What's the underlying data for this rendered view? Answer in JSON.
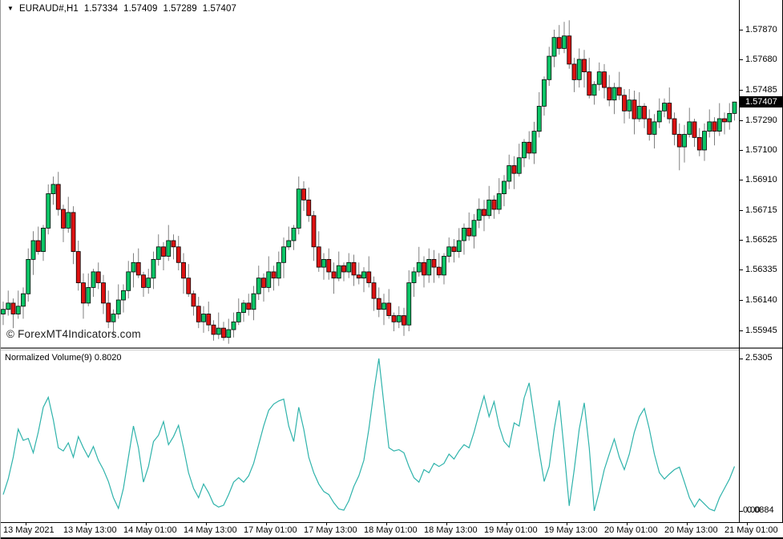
{
  "window": {
    "collapse_icon": "▼",
    "symbol": "EURAUD#,H1",
    "ohlc_open": "1.57334",
    "ohlc_high": "1.57409",
    "ohlc_low": "1.57289",
    "ohlc_close": "1.57407"
  },
  "watermark": "© ForexMT4Indicators.com",
  "indicator_panel": {
    "label": "Normalized Volume(9)",
    "current_value": "0.8020",
    "axis_max": "2.5305",
    "axis_min": "0.0884",
    "axis_min_overlay": "0.00"
  },
  "price_axis": {
    "labels": [
      "1.57870",
      "1.57680",
      "1.57485",
      "1.57290",
      "1.57100",
      "1.56910",
      "1.56715",
      "1.56525",
      "1.56335",
      "1.56140",
      "1.55945"
    ],
    "current_price": "1.57407"
  },
  "time_axis": {
    "labels": [
      "13 May 2021",
      "13 May 13:00",
      "14 May 01:00",
      "14 May 13:00",
      "17 May 01:00",
      "17 May 13:00",
      "18 May 01:00",
      "18 May 13:00",
      "19 May 01:00",
      "19 May 13:00",
      "20 May 01:00",
      "20 May 13:00",
      "21 May 01:00"
    ]
  },
  "colors": {
    "background": "#ffffff",
    "bull": "#0bc566",
    "bear": "#de1212",
    "candle_outline": "#000000",
    "wick": "#808080",
    "indicator_line": "#2fb3ab",
    "badge_bg": "#000000",
    "badge_text": "#ffffff",
    "frame": "#000000",
    "text": "#000000"
  },
  "chart_data": [
    {
      "type": "candlestick",
      "title": "EURAUD# H1 candlestick price chart",
      "ylabel": "price",
      "ylim": [
        1.5584,
        1.5806
      ],
      "axis_refs": {
        "price_a": 1.5787,
        "y_a": 37,
        "price_b": 1.55945,
        "y_b": 412
      },
      "ohlc": [
        [
          1.5605,
          1.5613,
          1.5598,
          1.5608
        ],
        [
          1.5608,
          1.562,
          1.5604,
          1.5612
        ],
        [
          1.5612,
          1.5615,
          1.5596,
          1.5605
        ],
        [
          1.5605,
          1.562,
          1.5602,
          1.561
        ],
        [
          1.561,
          1.5622,
          1.5602,
          1.5618
        ],
        [
          1.5618,
          1.5647,
          1.5613,
          1.564
        ],
        [
          1.564,
          1.5658,
          1.563,
          1.5652
        ],
        [
          1.5652,
          1.5661,
          1.5643,
          1.5645
        ],
        [
          1.5645,
          1.5662,
          1.5639,
          1.566
        ],
        [
          1.566,
          1.5688,
          1.5656,
          1.5682
        ],
        [
          1.5682,
          1.5693,
          1.5675,
          1.5688
        ],
        [
          1.5688,
          1.5696,
          1.5668,
          1.5672
        ],
        [
          1.5672,
          1.5675,
          1.5651,
          1.566
        ],
        [
          1.566,
          1.568,
          1.5657,
          1.567
        ],
        [
          1.567,
          1.5674,
          1.5637,
          1.5645
        ],
        [
          1.5645,
          1.5652,
          1.562,
          1.5625
        ],
        [
          1.5625,
          1.5631,
          1.5602,
          1.5612
        ],
        [
          1.5612,
          1.5631,
          1.561,
          1.5622
        ],
        [
          1.5622,
          1.5634,
          1.5616,
          1.5632
        ],
        [
          1.5632,
          1.5638,
          1.5621,
          1.5625
        ],
        [
          1.5625,
          1.563,
          1.5605,
          1.5612
        ],
        [
          1.5612,
          1.562,
          1.5596,
          1.56
        ],
        [
          1.56,
          1.5608,
          1.5591,
          1.5605
        ],
        [
          1.5605,
          1.5624,
          1.5602,
          1.5614
        ],
        [
          1.5614,
          1.5624,
          1.5606,
          1.562
        ],
        [
          1.562,
          1.5639,
          1.5615,
          1.5632
        ],
        [
          1.5632,
          1.5644,
          1.5622,
          1.5638
        ],
        [
          1.5638,
          1.5647,
          1.5628,
          1.563
        ],
        [
          1.563,
          1.5632,
          1.5616,
          1.5622
        ],
        [
          1.5622,
          1.5634,
          1.5618,
          1.5628
        ],
        [
          1.5628,
          1.5645,
          1.5621,
          1.564
        ],
        [
          1.564,
          1.5656,
          1.5636,
          1.5648
        ],
        [
          1.5648,
          1.5651,
          1.5633,
          1.5642
        ],
        [
          1.5642,
          1.5662,
          1.5639,
          1.5652
        ],
        [
          1.5652,
          1.5656,
          1.564,
          1.5648
        ],
        [
          1.5648,
          1.5655,
          1.5633,
          1.5638
        ],
        [
          1.5638,
          1.5644,
          1.5618,
          1.5628
        ],
        [
          1.5628,
          1.5637,
          1.5616,
          1.5618
        ],
        [
          1.5618,
          1.562,
          1.5604,
          1.561
        ],
        [
          1.561,
          1.5616,
          1.5596,
          1.56
        ],
        [
          1.56,
          1.561,
          1.5593,
          1.5605
        ],
        [
          1.5605,
          1.5613,
          1.5594,
          1.5598
        ],
        [
          1.5598,
          1.5601,
          1.5588,
          1.5592
        ],
        [
          1.5592,
          1.5606,
          1.5589,
          1.5596
        ],
        [
          1.5596,
          1.56,
          1.5588,
          1.559
        ],
        [
          1.559,
          1.5602,
          1.5586,
          1.5595
        ],
        [
          1.5595,
          1.5606,
          1.559,
          1.56
        ],
        [
          1.56,
          1.5615,
          1.5598,
          1.5606
        ],
        [
          1.5606,
          1.5614,
          1.56,
          1.5612
        ],
        [
          1.5612,
          1.5618,
          1.5604,
          1.5608
        ],
        [
          1.5608,
          1.5623,
          1.5601,
          1.5618
        ],
        [
          1.5618,
          1.5636,
          1.5614,
          1.5628
        ],
        [
          1.5628,
          1.5631,
          1.5613,
          1.5622
        ],
        [
          1.5622,
          1.5642,
          1.5619,
          1.5632
        ],
        [
          1.5632,
          1.5636,
          1.562,
          1.5628
        ],
        [
          1.5628,
          1.5645,
          1.5623,
          1.5638
        ],
        [
          1.5638,
          1.5654,
          1.5628,
          1.5648
        ],
        [
          1.5648,
          1.5661,
          1.5646,
          1.5652
        ],
        [
          1.5652,
          1.5662,
          1.5646,
          1.566
        ],
        [
          1.566,
          1.5693,
          1.5656,
          1.5685
        ],
        [
          1.5685,
          1.569,
          1.5671,
          1.5678
        ],
        [
          1.5678,
          1.5686,
          1.5664,
          1.5668
        ],
        [
          1.5668,
          1.5671,
          1.5639,
          1.5648
        ],
        [
          1.5648,
          1.5658,
          1.5632,
          1.5635
        ],
        [
          1.5635,
          1.5644,
          1.5627,
          1.564
        ],
        [
          1.564,
          1.5647,
          1.5627,
          1.5632
        ],
        [
          1.5632,
          1.5638,
          1.5618,
          1.5628
        ],
        [
          1.5628,
          1.5645,
          1.5626,
          1.5636
        ],
        [
          1.5636,
          1.5638,
          1.5626,
          1.5632
        ],
        [
          1.5632,
          1.5644,
          1.5628,
          1.5638
        ],
        [
          1.5638,
          1.5643,
          1.5623,
          1.563
        ],
        [
          1.563,
          1.5638,
          1.5624,
          1.5628
        ],
        [
          1.5628,
          1.5635,
          1.5619,
          1.5632
        ],
        [
          1.5632,
          1.5642,
          1.5622,
          1.5625
        ],
        [
          1.5625,
          1.5629,
          1.5607,
          1.5615
        ],
        [
          1.5615,
          1.5622,
          1.5603,
          1.5608
        ],
        [
          1.5608,
          1.5618,
          1.5598,
          1.5612
        ],
        [
          1.5612,
          1.5621,
          1.5602,
          1.5604
        ],
        [
          1.5604,
          1.5606,
          1.5594,
          1.56
        ],
        [
          1.56,
          1.561,
          1.5596,
          1.5604
        ],
        [
          1.5604,
          1.5609,
          1.5591,
          1.5598
        ],
        [
          1.5598,
          1.5633,
          1.5594,
          1.5625
        ],
        [
          1.5625,
          1.5635,
          1.5616,
          1.5632
        ],
        [
          1.5632,
          1.5648,
          1.5629,
          1.5638
        ],
        [
          1.5638,
          1.5642,
          1.5622,
          1.563
        ],
        [
          1.563,
          1.5647,
          1.5625,
          1.564
        ],
        [
          1.564,
          1.5646,
          1.5625,
          1.5635
        ],
        [
          1.5635,
          1.5644,
          1.5628,
          1.563
        ],
        [
          1.563,
          1.5644,
          1.5624,
          1.5642
        ],
        [
          1.5642,
          1.5654,
          1.5638,
          1.5648
        ],
        [
          1.5648,
          1.5653,
          1.5638,
          1.5645
        ],
        [
          1.5645,
          1.566,
          1.5641,
          1.5652
        ],
        [
          1.5652,
          1.5663,
          1.5643,
          1.566
        ],
        [
          1.566,
          1.567,
          1.5652,
          1.5655
        ],
        [
          1.5655,
          1.5669,
          1.5647,
          1.5665
        ],
        [
          1.5665,
          1.5679,
          1.566,
          1.5672
        ],
        [
          1.5672,
          1.5678,
          1.5658,
          1.5668
        ],
        [
          1.5668,
          1.5687,
          1.5666,
          1.5678
        ],
        [
          1.5678,
          1.5681,
          1.5666,
          1.5672
        ],
        [
          1.5672,
          1.5692,
          1.5669,
          1.5682
        ],
        [
          1.5682,
          1.5694,
          1.5674,
          1.569
        ],
        [
          1.569,
          1.5707,
          1.5685,
          1.57
        ],
        [
          1.57,
          1.5706,
          1.5685,
          1.5695
        ],
        [
          1.5695,
          1.5714,
          1.5693,
          1.5705
        ],
        [
          1.5705,
          1.5717,
          1.5699,
          1.5715
        ],
        [
          1.5715,
          1.5722,
          1.5704,
          1.5708
        ],
        [
          1.5708,
          1.5728,
          1.5701,
          1.5722
        ],
        [
          1.5722,
          1.5747,
          1.5718,
          1.5738
        ],
        [
          1.5738,
          1.5757,
          1.5732,
          1.5755
        ],
        [
          1.5755,
          1.5776,
          1.5751,
          1.577
        ],
        [
          1.577,
          1.5787,
          1.5763,
          1.5782
        ],
        [
          1.5782,
          1.579,
          1.5771,
          1.5775
        ],
        [
          1.5775,
          1.5792,
          1.5772,
          1.5783
        ],
        [
          1.5783,
          1.5793,
          1.5762,
          1.5765
        ],
        [
          1.5765,
          1.5769,
          1.5747,
          1.5755
        ],
        [
          1.5755,
          1.5775,
          1.575,
          1.5768
        ],
        [
          1.5768,
          1.5774,
          1.575,
          1.576
        ],
        [
          1.576,
          1.5769,
          1.5743,
          1.5745
        ],
        [
          1.5745,
          1.5754,
          1.5739,
          1.5752
        ],
        [
          1.5752,
          1.5766,
          1.5748,
          1.576
        ],
        [
          1.576,
          1.5765,
          1.5743,
          1.575
        ],
        [
          1.575,
          1.5758,
          1.5738,
          1.5742
        ],
        [
          1.5742,
          1.5753,
          1.5733,
          1.575
        ],
        [
          1.575,
          1.576,
          1.5742,
          1.5745
        ],
        [
          1.5745,
          1.5749,
          1.5727,
          1.5735
        ],
        [
          1.5735,
          1.5749,
          1.573,
          1.5742
        ],
        [
          1.5742,
          1.5748,
          1.572,
          1.573
        ],
        [
          1.573,
          1.5747,
          1.5728,
          1.5738
        ],
        [
          1.5738,
          1.574,
          1.5724,
          1.573
        ],
        [
          1.573,
          1.5736,
          1.5716,
          1.572
        ],
        [
          1.572,
          1.5733,
          1.5711,
          1.5728
        ],
        [
          1.5728,
          1.5743,
          1.5724,
          1.5735
        ],
        [
          1.5735,
          1.5743,
          1.5731,
          1.574
        ],
        [
          1.574,
          1.575,
          1.5727,
          1.573
        ],
        [
          1.573,
          1.5734,
          1.5713,
          1.572
        ],
        [
          1.572,
          1.5727,
          1.5697,
          1.5712
        ],
        [
          1.5712,
          1.5726,
          1.5702,
          1.572
        ],
        [
          1.572,
          1.5737,
          1.5718,
          1.5728
        ],
        [
          1.5728,
          1.573,
          1.5712,
          1.5718
        ],
        [
          1.5718,
          1.5724,
          1.5706,
          1.571
        ],
        [
          1.571,
          1.5727,
          1.5703,
          1.5722
        ],
        [
          1.5722,
          1.5736,
          1.5718,
          1.5728
        ],
        [
          1.5728,
          1.5731,
          1.5713,
          1.5722
        ],
        [
          1.5722,
          1.574,
          1.5719,
          1.573
        ],
        [
          1.573,
          1.5734,
          1.572,
          1.5728
        ],
        [
          1.5728,
          1.574,
          1.5723,
          1.57334
        ],
        [
          1.57334,
          1.57409,
          1.57289,
          1.57407
        ]
      ]
    },
    {
      "type": "line",
      "title": "Normalized Volume(9)",
      "ylim": [
        0.0884,
        2.5305
      ],
      "axis_refs": {
        "val_a": 2.5305,
        "y_a": 447,
        "val_b": 0.0884,
        "y_b": 637
      },
      "values": [
        0.35,
        0.6,
        0.95,
        1.4,
        1.22,
        1.25,
        1.02,
        1.35,
        1.75,
        1.91,
        1.55,
        1.1,
        1.05,
        1.18,
        0.95,
        1.28,
        1.1,
        0.95,
        1.12,
        0.9,
        0.75,
        0.56,
        0.3,
        0.13,
        0.45,
        0.95,
        1.45,
        1.1,
        0.55,
        0.8,
        1.2,
        1.3,
        1.52,
        1.15,
        1.28,
        1.46,
        1.1,
        0.7,
        0.45,
        0.3,
        0.52,
        0.38,
        0.2,
        0.15,
        0.18,
        0.35,
        0.55,
        0.62,
        0.55,
        0.65,
        0.85,
        1.15,
        1.45,
        1.7,
        1.8,
        1.85,
        1.88,
        1.45,
        1.2,
        1.75,
        1.4,
        0.95,
        0.7,
        0.52,
        0.4,
        0.35,
        0.22,
        0.12,
        0.1,
        0.25,
        0.48,
        0.65,
        0.9,
        1.4,
        2.0,
        2.5305,
        1.8,
        1.1,
        1.05,
        1.07,
        1.02,
        0.8,
        0.62,
        0.55,
        0.75,
        0.7,
        0.85,
        0.8,
        0.85,
        1.0,
        0.92,
        1.05,
        1.15,
        1.1,
        1.35,
        1.65,
        1.93,
        1.6,
        1.84,
        1.45,
        1.2,
        1.11,
        1.5,
        1.45,
        1.9,
        2.14,
        1.6,
        1.05,
        0.56,
        0.8,
        1.4,
        1.86,
        1.05,
        0.17,
        0.75,
        1.4,
        1.82,
        1.1,
        0.09,
        0.4,
        0.75,
        1.0,
        1.24,
        0.95,
        0.75,
        1.0,
        1.35,
        1.6,
        1.73,
        1.4,
        1.0,
        0.7,
        0.6,
        0.68,
        0.75,
        0.79,
        0.55,
        0.3,
        0.15,
        0.28,
        0.2,
        0.12,
        0.09,
        0.3,
        0.45,
        0.6,
        0.802
      ]
    }
  ]
}
